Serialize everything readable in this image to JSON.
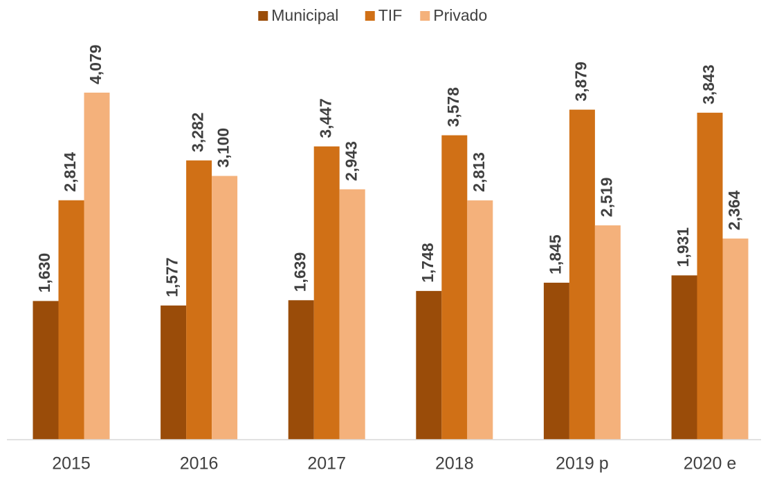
{
  "chart_data": {
    "type": "bar",
    "categories": [
      "2015",
      "2016",
      "2017",
      "2018",
      "2019 p",
      "2020 e"
    ],
    "series": [
      {
        "name": "Municipal",
        "color": "#9a4c09",
        "values": [
          1630,
          1577,
          1639,
          1748,
          1845,
          1931
        ],
        "value_labels": [
          "1,630",
          "1,577",
          "1,639",
          "1,748",
          "1,845",
          "1,931"
        ]
      },
      {
        "name": "TIF",
        "color": "#d07016",
        "values": [
          2814,
          3282,
          3447,
          3578,
          3879,
          3843
        ],
        "value_labels": [
          "2,814",
          "3,282",
          "3,447",
          "3,578",
          "3,879",
          "3,843"
        ]
      },
      {
        "name": "Privado",
        "color": "#f4b17b",
        "values": [
          4079,
          3100,
          2943,
          2813,
          2519,
          2364
        ],
        "value_labels": [
          "4,079",
          "3,100",
          "2,943",
          "2,813",
          "2,519",
          "2,364"
        ]
      }
    ],
    "legend": "top"
  }
}
